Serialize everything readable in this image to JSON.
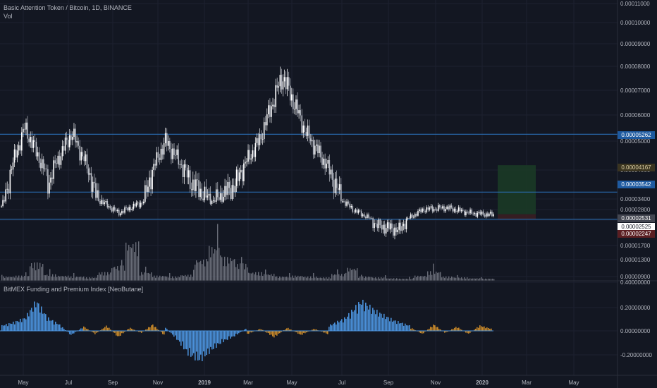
{
  "header": {
    "symbol_title": "Basic Attention Token / Bitcoin, 1D, BINANCE",
    "volume_label": "Vol",
    "indicator_title": "BitMEX Funding and Premium Index [NeoButane]"
  },
  "price_labels": {
    "upper_line": "0.00005262",
    "middle_line": "0.00003542",
    "target": "0.00004167",
    "high_box": "0.00002531",
    "last_price": "0.00002525",
    "stop": "0.00002247"
  },
  "colors": {
    "background": "#131722",
    "grid": "#1c2030",
    "candle_up": "#ffffff",
    "candle_down": "#b8bcc6",
    "level_line": "#2a6cb0",
    "volume": "#787b86",
    "funding_blue": "#4a90d9",
    "funding_orange": "#c8892a",
    "profit_zone": "#1b3a26",
    "loss_zone": "#3a1e22"
  },
  "chart_data": [
    {
      "type": "candlestick",
      "title": "Basic Attention Token / Bitcoin, 1D, BINANCE",
      "y_ticks": [
        "0.00011000",
        "0.00010000",
        "0.00009000",
        "0.00008000",
        "0.00007000",
        "0.00006000",
        "0.00005000",
        "0.00004000",
        "0.00003400",
        "0.00002800",
        "0.00002200",
        "0.00001700",
        "0.00001300",
        "0.00000900"
      ],
      "horizontal_levels": [
        5.262e-05,
        3.542e-05,
        2.247e-05
      ],
      "x_ticks": [
        "May",
        "Jul",
        "Sep",
        "Nov",
        "2019",
        "Mar",
        "May",
        "Jul",
        "Sep",
        "Nov",
        "2020",
        "Mar",
        "May"
      ],
      "close_path": {
        "x": [
          "Apr 2018",
          "May 2018",
          "Jun 2018",
          "Jul 2018",
          "Aug 2018",
          "Sep 2018",
          "Oct 2018",
          "Nov 2018",
          "Dec 2018",
          "Jan 2019",
          "Feb 2019",
          "Mar 2019",
          "Apr 2019",
          "May 2019",
          "Jun 2019",
          "Jul 2019",
          "Aug 2019",
          "Sep 2019",
          "Oct 2019",
          "Nov 2019",
          "Dec 2019",
          "Jan 2020"
        ],
        "values": [
          3e-05,
          5.5e-05,
          3.7e-05,
          5.3e-05,
          3.5e-05,
          2.6e-05,
          3.2e-05,
          5e-05,
          3.8e-05,
          3.3e-05,
          3.7e-05,
          5e-05,
          7.6e-05,
          5.3e-05,
          4e-05,
          2.8e-05,
          2.1e-05,
          2e-05,
          2.8e-05,
          2.9e-05,
          2.6e-05,
          2.5e-05
        ]
      }
    },
    {
      "type": "bar",
      "title": "Vol",
      "relative_values": [
        0.1,
        0.12,
        0.42,
        0.15,
        0.12,
        0.1,
        0.08,
        0.2,
        0.35,
        0.9,
        0.2,
        0.12,
        0.1,
        0.14,
        0.5,
        0.8,
        0.55,
        0.4,
        0.2,
        0.16,
        0.1,
        0.12,
        0.1,
        0.08,
        0.16,
        0.3,
        0.1,
        0.08,
        0.06,
        0.05,
        0.12,
        0.22,
        0.1,
        0.08,
        0.06,
        0.05
      ]
    },
    {
      "type": "area",
      "title": "BitMEX Funding and Premium Index [NeoButane]",
      "y_ticks": [
        "0.40000000",
        "0.20000000",
        "0.00000000",
        "-0.20000000"
      ],
      "ylim": [
        -0.32,
        0.42
      ],
      "segments": [
        {
          "color": "blue",
          "values": [
            0.05,
            0.08,
            0.12,
            0.28,
            0.12,
            0.06,
            -0.04,
            0.03
          ]
        },
        {
          "color": "orange",
          "values": [
            0.04,
            -0.03,
            0.05,
            -0.06,
            0.03,
            -0.02,
            0.06,
            -0.04
          ]
        },
        {
          "color": "blue",
          "values": [
            0.03,
            -0.08,
            -0.22,
            -0.28,
            -0.18,
            -0.1,
            -0.05,
            0.02
          ]
        },
        {
          "color": "orange",
          "values": [
            -0.03,
            0.02,
            -0.06,
            0.03,
            -0.04,
            0.02,
            -0.03
          ]
        },
        {
          "color": "blue",
          "values": [
            0.05,
            0.12,
            0.28,
            0.18,
            0.1,
            0.05
          ]
        },
        {
          "color": "orange",
          "values": [
            0.03,
            -0.03,
            0.06,
            -0.02,
            0.04,
            -0.03,
            0.05,
            0.02
          ]
        }
      ]
    }
  ]
}
